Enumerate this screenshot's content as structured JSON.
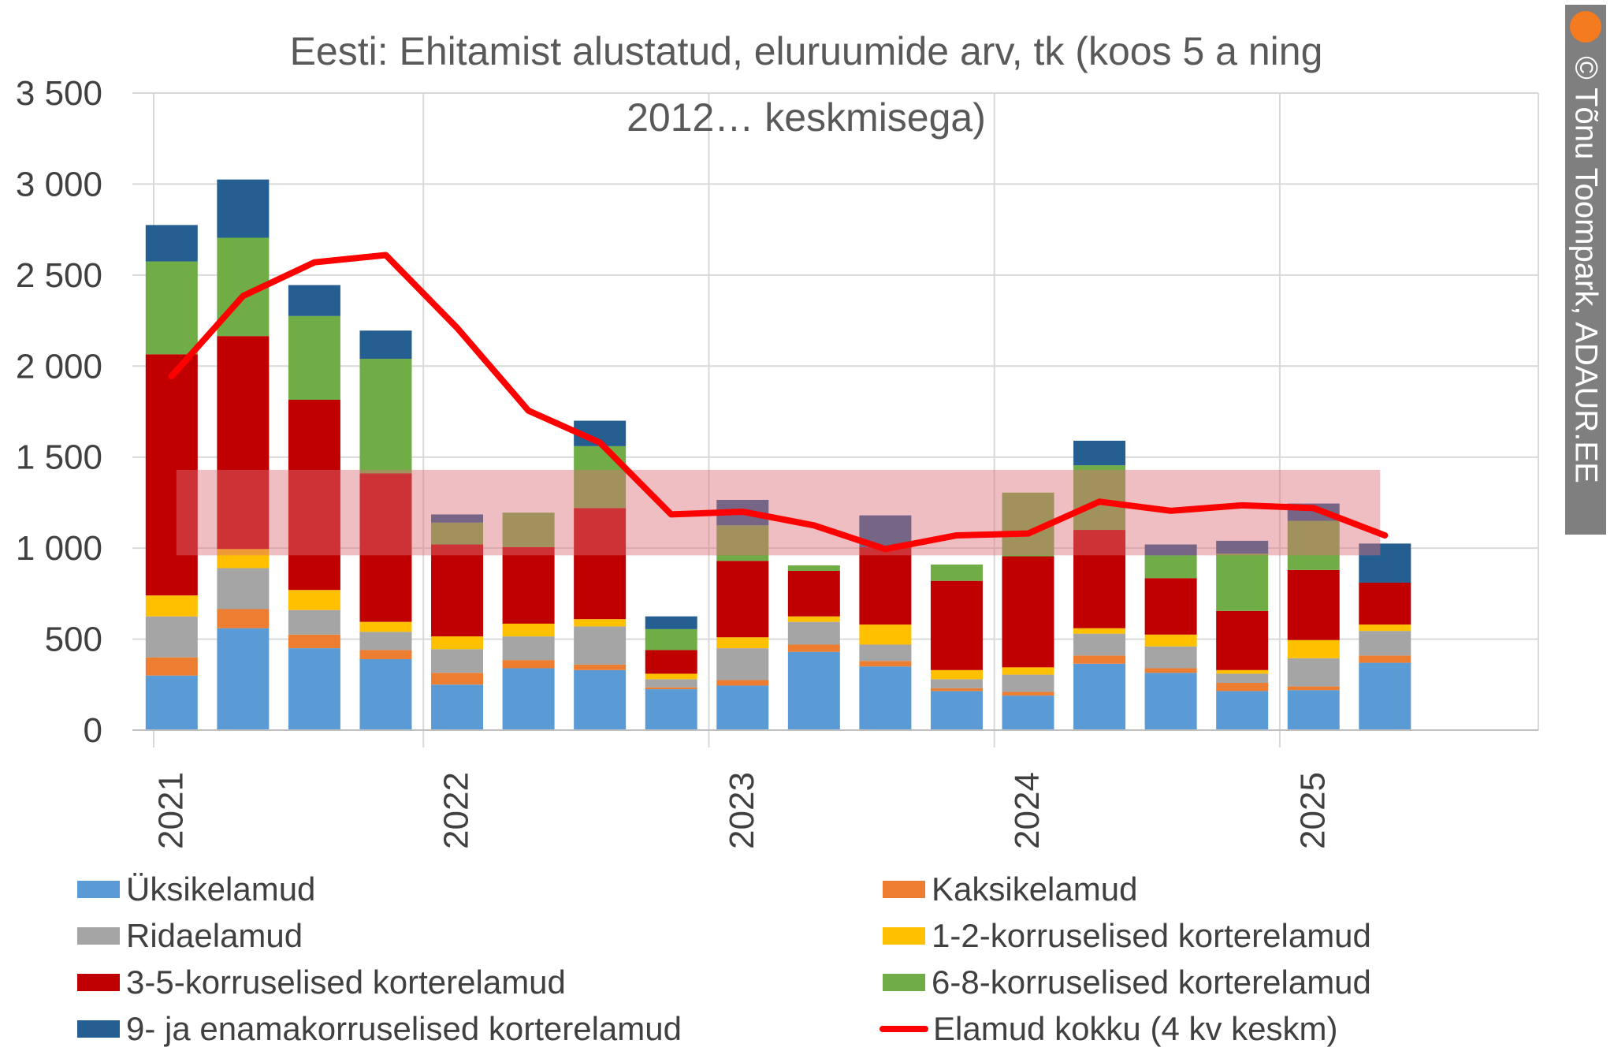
{
  "watermark": "© Tõnu Toompark, ADAUR.EE",
  "chart_data": {
    "type": "bar",
    "stacked": true,
    "title": "Eesti: Ehitamist alustatud, eluruumide arv, tk (koos 5 a ning 2012… keskmisega)",
    "title_lines": [
      "Eesti: Ehitamist alustatud, eluruumide arv, tk (koos 5 a ning",
      "2012… keskmisega)"
    ],
    "xlabel": "",
    "ylabel": "",
    "ylim": [
      0,
      3500
    ],
    "yticks": [
      0,
      500,
      1000,
      1500,
      2000,
      2500,
      3000,
      3500
    ],
    "ytick_labels": [
      "0",
      "500",
      "1 000",
      "1 500",
      "2 000",
      "2 500",
      "3 000",
      "3 500"
    ],
    "x_year_labels": [
      "2021",
      "2022",
      "2023",
      "2024",
      "2025"
    ],
    "grid": true,
    "legend_placement": "bottom",
    "categories": [
      "2021 Q1",
      "2021 Q2",
      "2021 Q3",
      "2021 Q4",
      "2022 Q1",
      "2022 Q2",
      "2022 Q3",
      "2022 Q4",
      "2023 Q1",
      "2023 Q2",
      "2023 Q3",
      "2023 Q4",
      "2024 Q1",
      "2024 Q2",
      "2024 Q3",
      "2024 Q4",
      "2025 Q1",
      "2025 Q2"
    ],
    "series": [
      {
        "name": "Üksikelamud",
        "color": "#5b9bd5",
        "values": [
          300,
          560,
          450,
          390,
          250,
          340,
          330,
          225,
          245,
          430,
          350,
          215,
          190,
          365,
          315,
          215,
          220,
          370
        ]
      },
      {
        "name": "Kaksikelamud",
        "color": "#ed7d31",
        "values": [
          100,
          105,
          75,
          50,
          65,
          45,
          30,
          10,
          30,
          40,
          30,
          15,
          20,
          45,
          25,
          45,
          20,
          40
        ]
      },
      {
        "name": "Ridaelamud",
        "color": "#a5a5a5",
        "values": [
          225,
          225,
          135,
          100,
          130,
          130,
          210,
          45,
          175,
          125,
          90,
          50,
          95,
          120,
          120,
          50,
          155,
          135
        ]
      },
      {
        "name": "1-2-korruselised korterelamud",
        "color": "#ffc000",
        "values": [
          115,
          105,
          110,
          55,
          70,
          70,
          40,
          30,
          60,
          30,
          110,
          50,
          40,
          30,
          65,
          20,
          100,
          35
        ]
      },
      {
        "name": "3-5-korruselised korterelamud",
        "color": "#c00000",
        "values": [
          1325,
          1170,
          1045,
          815,
          505,
          420,
          610,
          130,
          420,
          250,
          425,
          490,
          610,
          540,
          310,
          325,
          385,
          230
        ]
      },
      {
        "name": "6-8-korruselised korterelamud",
        "color": "#70ad47",
        "values": [
          510,
          540,
          460,
          630,
          120,
          190,
          340,
          115,
          195,
          30,
          0,
          90,
          350,
          355,
          125,
          315,
          270,
          0
        ]
      },
      {
        "name": "9- ja enamakorruselised korterelamud",
        "color": "#255e91",
        "values": [
          200,
          320,
          170,
          155,
          45,
          0,
          140,
          70,
          140,
          0,
          175,
          0,
          0,
          135,
          60,
          70,
          95,
          215
        ]
      }
    ],
    "line": {
      "name": "Elamud kokku (4 kv keskm)",
      "color": "#ff0000",
      "values": [
        1945,
        2385,
        2570,
        2610,
        2210,
        1755,
        1580,
        1185,
        1200,
        1125,
        995,
        1070,
        1080,
        1255,
        1205,
        1235,
        1220,
        1070
      ]
    },
    "band": {
      "from": 960,
      "to": 1430,
      "color": "#dc6e78"
    }
  }
}
